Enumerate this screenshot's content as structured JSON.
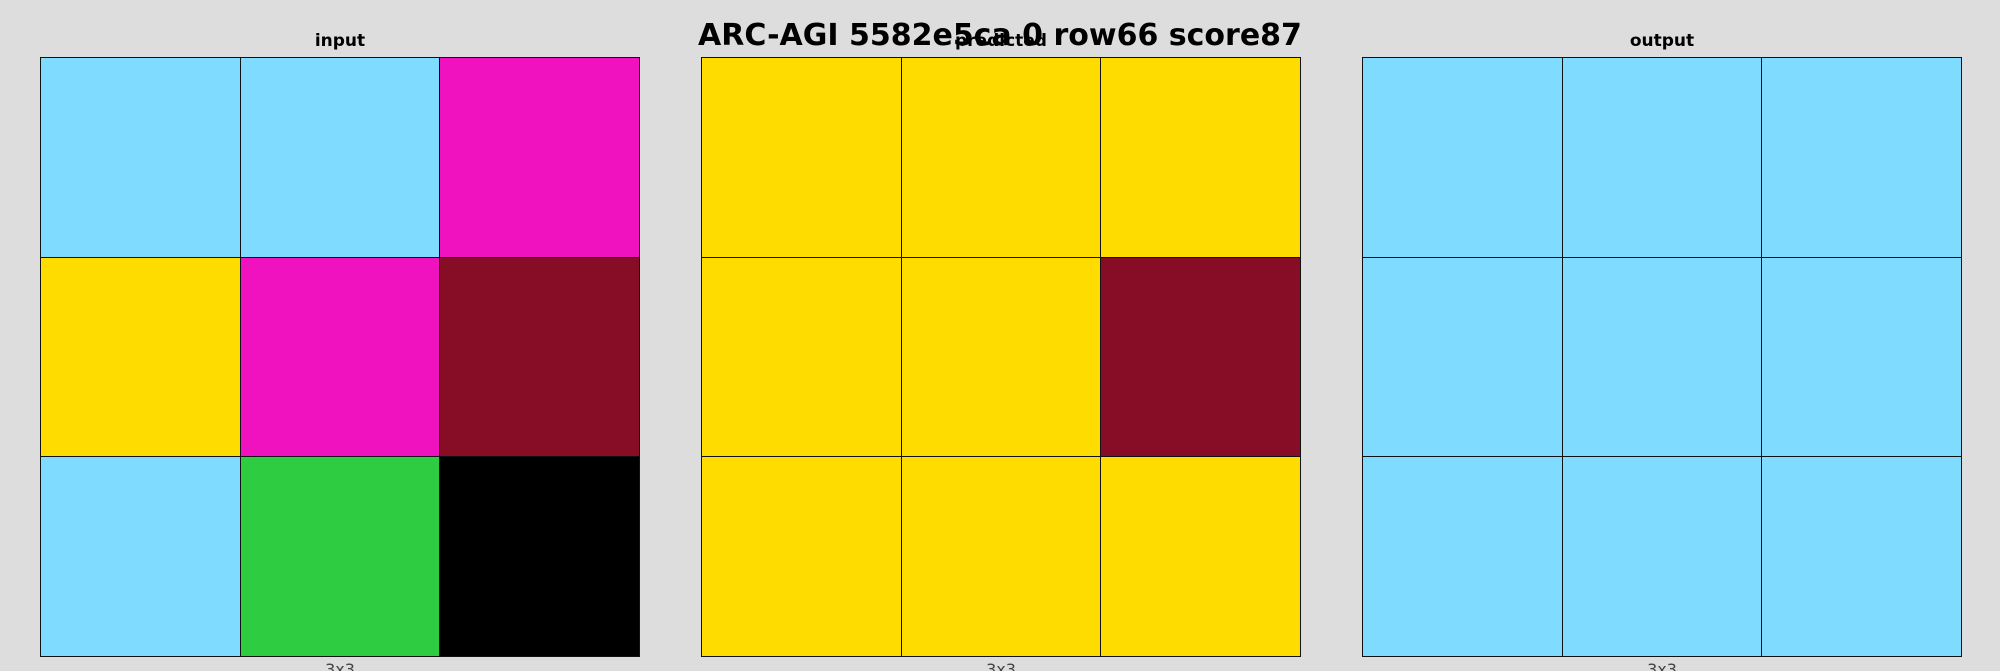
{
  "title": "ARC-AGI 5582e5ca 0 row66 score87",
  "panels": [
    {
      "label": "input",
      "size": "3x3",
      "cells": [
        [
          "#7fdbff",
          "#7fdbff",
          "#f012be"
        ],
        [
          "#ffdc00",
          "#f012be",
          "#870c25"
        ],
        [
          "#7fdbff",
          "#2ecc40",
          "#000000"
        ]
      ]
    },
    {
      "label": "predicted",
      "size": "3x3",
      "cells": [
        [
          "#ffdc00",
          "#ffdc00",
          "#ffdc00"
        ],
        [
          "#ffdc00",
          "#ffdc00",
          "#870c25"
        ],
        [
          "#ffdc00",
          "#ffdc00",
          "#ffdc00"
        ]
      ]
    },
    {
      "label": "output",
      "size": "3x3",
      "cells": [
        [
          "#7fdbff",
          "#7fdbff",
          "#7fdbff"
        ],
        [
          "#7fdbff",
          "#7fdbff",
          "#7fdbff"
        ],
        [
          "#7fdbff",
          "#7fdbff",
          "#7fdbff"
        ]
      ]
    }
  ]
}
